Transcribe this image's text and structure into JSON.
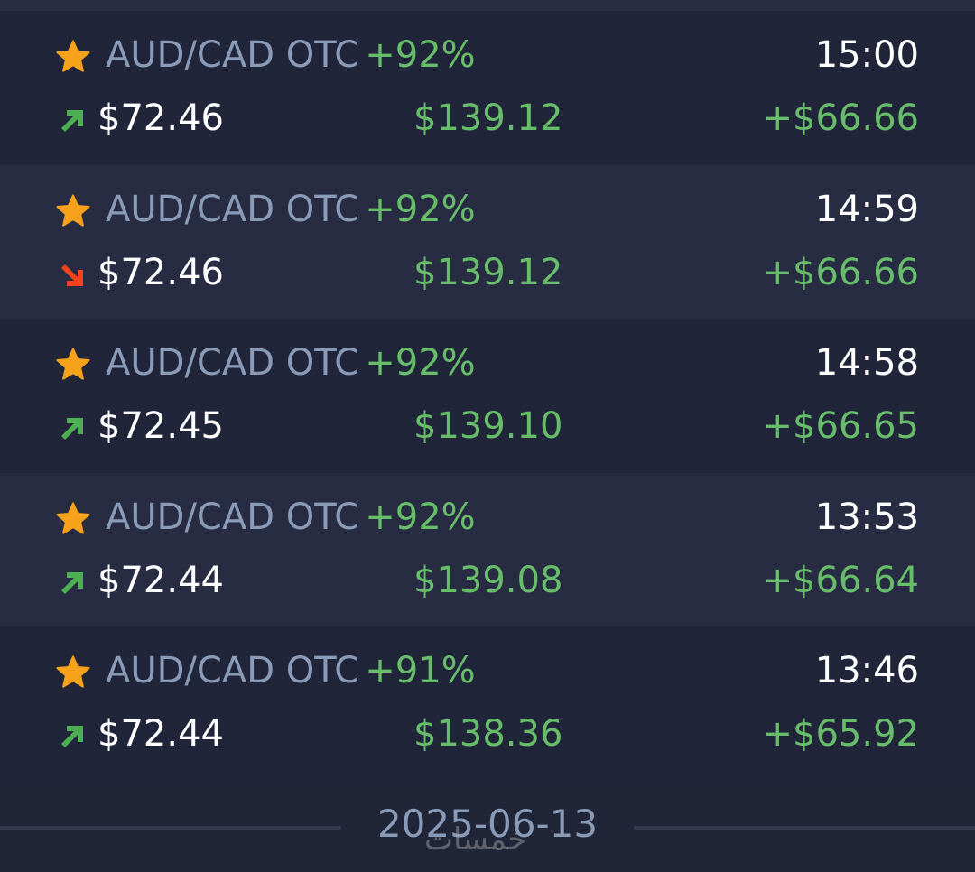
{
  "colors": {
    "up": "#4caf50",
    "down": "#f4411e",
    "star": "#f7a21b",
    "positive": "#67bd6a",
    "asset": "#8a9bb8"
  },
  "trades": [
    {
      "asset": "AUD/CAD OTC",
      "percent": "+92%",
      "time": "15:00",
      "direction": "up",
      "amount": "$72.46",
      "payout": "$139.12",
      "profit": "+$66.66"
    },
    {
      "asset": "AUD/CAD OTC",
      "percent": "+92%",
      "time": "14:59",
      "direction": "down",
      "amount": "$72.46",
      "payout": "$139.12",
      "profit": "+$66.66"
    },
    {
      "asset": "AUD/CAD OTC",
      "percent": "+92%",
      "time": "14:58",
      "direction": "up",
      "amount": "$72.45",
      "payout": "$139.10",
      "profit": "+$66.65"
    },
    {
      "asset": "AUD/CAD OTC",
      "percent": "+92%",
      "time": "13:53",
      "direction": "up",
      "amount": "$72.44",
      "payout": "$139.08",
      "profit": "+$66.64"
    },
    {
      "asset": "AUD/CAD OTC",
      "percent": "+91%",
      "time": "13:46",
      "direction": "up",
      "amount": "$72.44",
      "payout": "$138.36",
      "profit": "+$65.92"
    }
  ],
  "date_separator": "2025-06-13",
  "watermark": "خمسات"
}
